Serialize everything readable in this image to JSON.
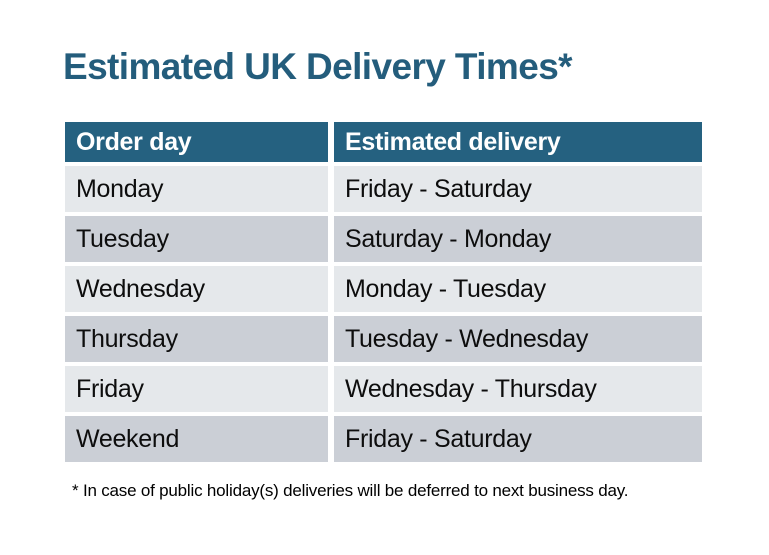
{
  "chart_data": {
    "type": "table",
    "title": "Estimated UK Delivery Times*",
    "columns": [
      "Order day",
      "Estimated delivery"
    ],
    "rows": [
      [
        "Monday",
        "Friday - Saturday"
      ],
      [
        "Tuesday",
        "Saturday - Monday"
      ],
      [
        "Wednesday",
        "Monday - Tuesday"
      ],
      [
        "Thursday",
        "Tuesday - Wednesday"
      ],
      [
        "Friday",
        "Wednesday - Thursday"
      ],
      [
        "Weekend",
        "Friday - Saturday"
      ]
    ],
    "footnote": "* In case of public holiday(s) deliveries will be deferred to next business day.",
    "layout": "two-column table, alternating row shading, header on top"
  },
  "colors": {
    "header_bg": "#256180",
    "title_color": "#245D7C",
    "row_odd": "#CBCFD6",
    "row_even": "#E5E8EB",
    "header_text": "#FFFFFF",
    "body_text": "#0D0D0D",
    "page_bg": "#FFFFFF"
  }
}
